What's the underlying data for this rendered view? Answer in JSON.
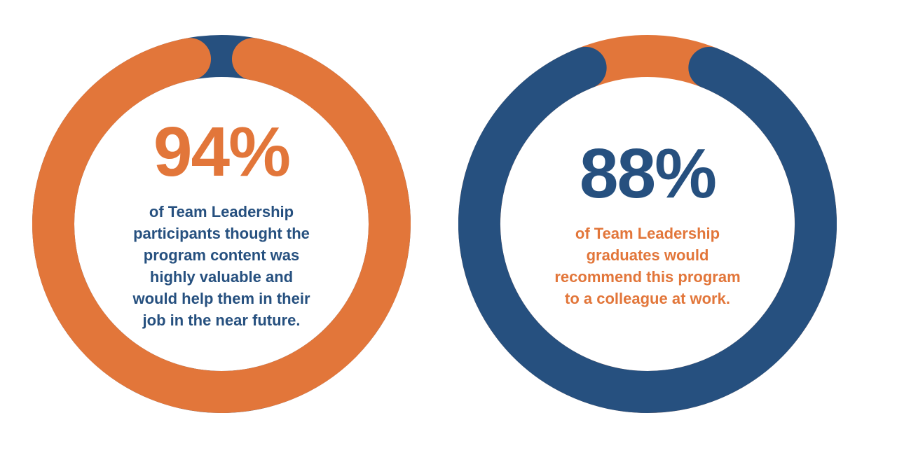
{
  "colors": {
    "orange": "#e2763a",
    "blue": "#26507f"
  },
  "stats": [
    {
      "value": "94%",
      "lines": [
        "of Team Leadership",
        "participants thought the",
        "program content was",
        "highly valuable and",
        "would help them in their",
        "job in the near future."
      ]
    },
    {
      "value": "88%",
      "lines": [
        "of Team Leadership",
        "graduates would",
        "recommend this program",
        "to a colleague at work."
      ]
    }
  ],
  "chart_data": [
    {
      "type": "pie",
      "style": "donut",
      "slices": [
        {
          "label": "94%",
          "value": 94,
          "color": "#e2763a"
        },
        {
          "label": "",
          "value": 6,
          "color": "#26507f"
        }
      ]
    },
    {
      "type": "pie",
      "style": "donut",
      "slices": [
        {
          "label": "88%",
          "value": 88,
          "color": "#26507f"
        },
        {
          "label": "",
          "value": 12,
          "color": "#e2763a"
        }
      ]
    }
  ]
}
